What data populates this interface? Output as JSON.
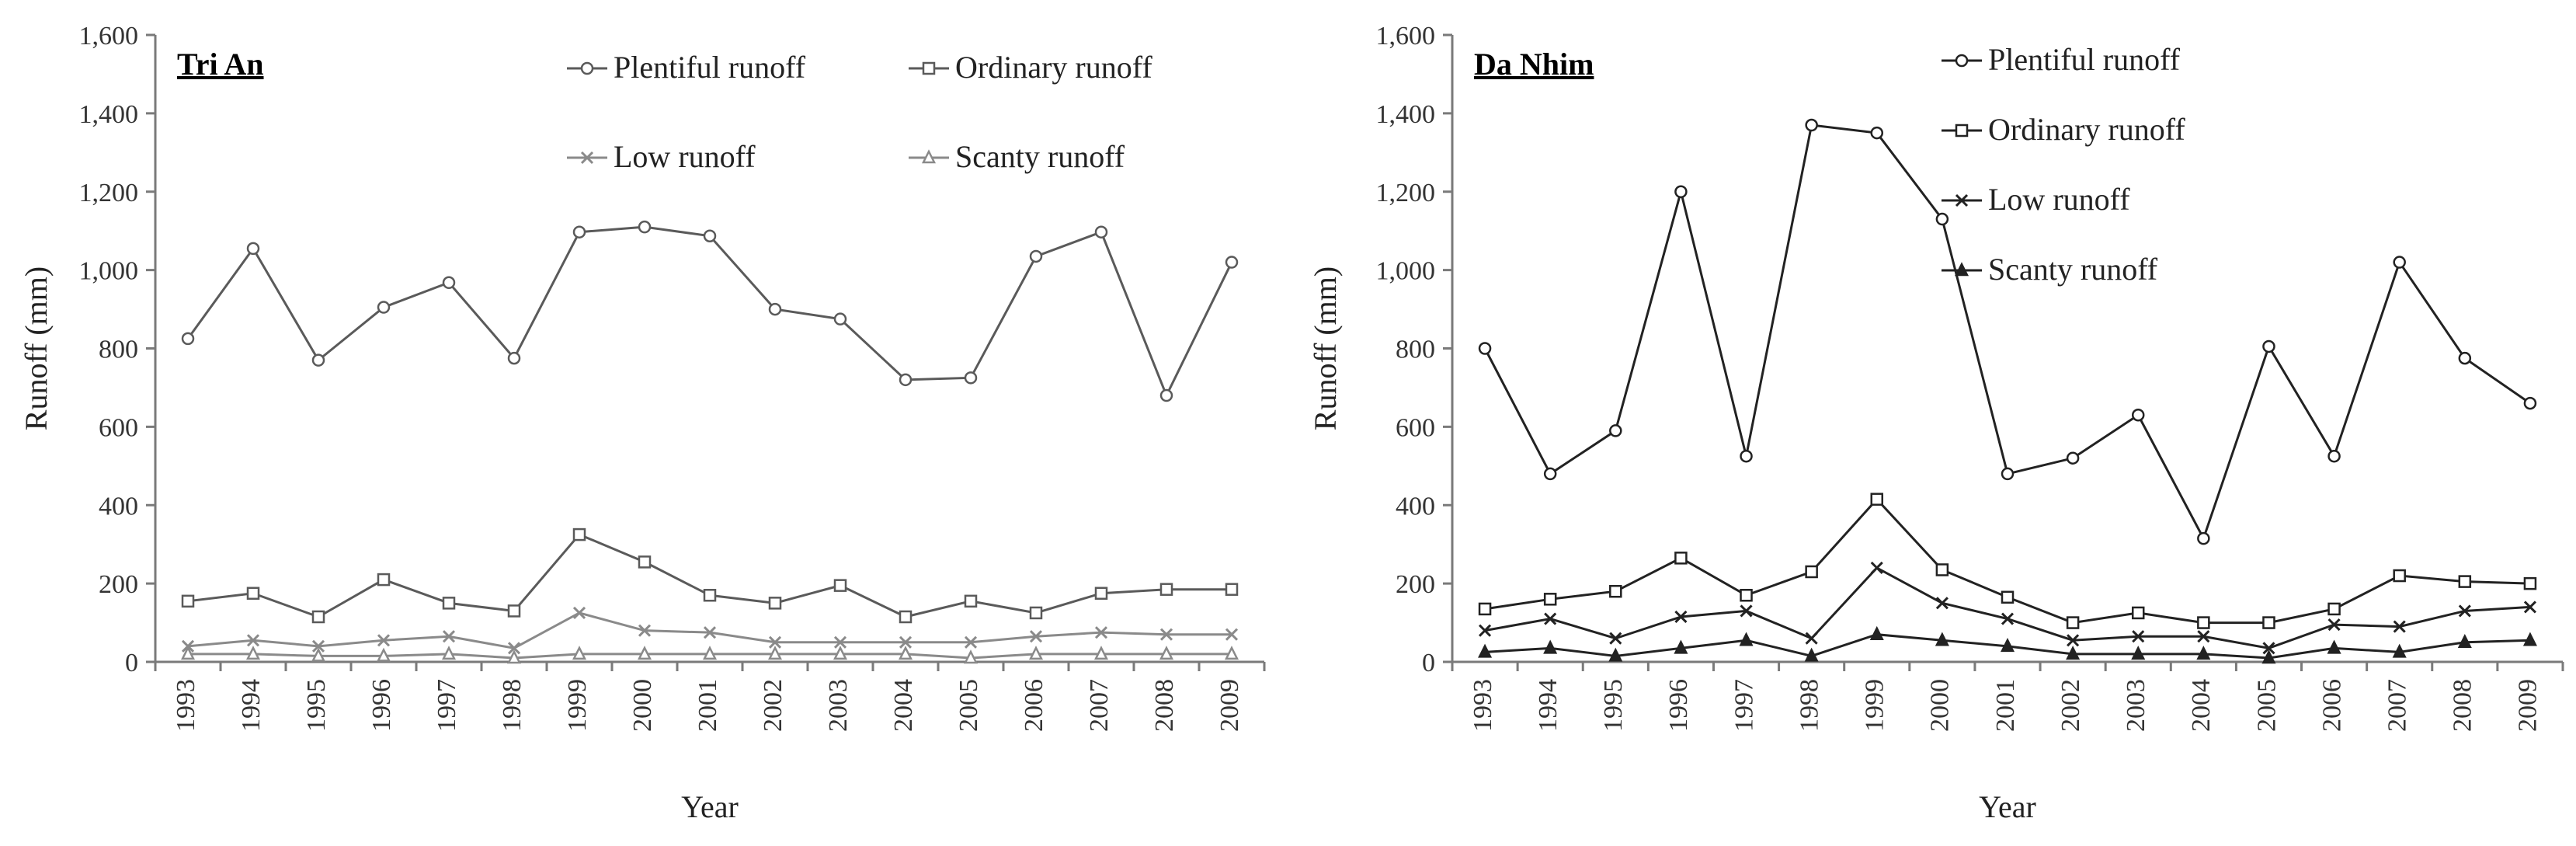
{
  "chart_data": [
    {
      "type": "line",
      "title": "Tri An",
      "xlabel": "Year",
      "ylabel": "Runoff (mm)",
      "ylim": [
        0,
        1600
      ],
      "yticks": [
        "0",
        "200",
        "400",
        "600",
        "800",
        "1,000",
        "1,200",
        "1,400",
        "1,600"
      ],
      "categories": [
        "1993",
        "1994",
        "1995",
        "1996",
        "1997",
        "1998",
        "1999",
        "2000",
        "2001",
        "2002",
        "2003",
        "2004",
        "2005",
        "2006",
        "2007",
        "2008",
        "2009"
      ],
      "legend_layout": "grid-2x2",
      "series": [
        {
          "name": "Plentiful runoff",
          "marker": "circle",
          "color": "#5a5a5a",
          "values": [
            825,
            1055,
            770,
            905,
            968,
            775,
            1097,
            1110,
            1087,
            900,
            875,
            720,
            725,
            1035,
            1097,
            680,
            1020
          ]
        },
        {
          "name": "Ordinary runoff",
          "marker": "square",
          "color": "#5a5a5a",
          "values": [
            155,
            175,
            115,
            210,
            150,
            130,
            325,
            255,
            170,
            150,
            195,
            115,
            155,
            125,
            175,
            185,
            185
          ]
        },
        {
          "name": "Low runoff",
          "marker": "x",
          "color": "#8a8a8a",
          "values": [
            40,
            55,
            40,
            55,
            65,
            35,
            125,
            80,
            75,
            50,
            50,
            50,
            50,
            65,
            75,
            70,
            70
          ]
        },
        {
          "name": "Scanty runoff",
          "marker": "triangle",
          "color": "#8a8a8a",
          "values": [
            20,
            20,
            15,
            15,
            20,
            10,
            20,
            20,
            20,
            20,
            20,
            20,
            10,
            20,
            20,
            20,
            20
          ]
        }
      ]
    },
    {
      "type": "line",
      "title": "Da Nhim",
      "xlabel": "Year",
      "ylabel": "Runoff (mm)",
      "ylim": [
        0,
        1600
      ],
      "yticks": [
        "0",
        "200",
        "400",
        "600",
        "800",
        "1,000",
        "1,200",
        "1,400",
        "1,600"
      ],
      "categories": [
        "1993",
        "1994",
        "1995",
        "1996",
        "1997",
        "1998",
        "1999",
        "2000",
        "2001",
        "2002",
        "2003",
        "2004",
        "2005",
        "2006",
        "2007",
        "2008",
        "2009"
      ],
      "legend_layout": "column",
      "series": [
        {
          "name": "Plentiful runoff",
          "marker": "circle",
          "color": "#222222",
          "values": [
            800,
            480,
            590,
            1200,
            525,
            1370,
            1350,
            1130,
            480,
            520,
            630,
            315,
            805,
            525,
            1020,
            775,
            660
          ]
        },
        {
          "name": "Ordinary runoff",
          "marker": "square",
          "color": "#222222",
          "values": [
            135,
            160,
            180,
            265,
            170,
            230,
            415,
            235,
            165,
            100,
            125,
            100,
            100,
            135,
            220,
            205,
            200
          ]
        },
        {
          "name": "Low runoff",
          "marker": "x",
          "color": "#222222",
          "values": [
            80,
            110,
            60,
            115,
            130,
            60,
            240,
            150,
            110,
            55,
            65,
            65,
            35,
            95,
            90,
            130,
            140
          ]
        },
        {
          "name": "Scanty runoff",
          "marker": "triangle",
          "color": "#222222",
          "values": [
            25,
            35,
            15,
            35,
            55,
            15,
            70,
            55,
            40,
            20,
            20,
            20,
            10,
            35,
            25,
            50,
            55
          ]
        }
      ]
    }
  ]
}
